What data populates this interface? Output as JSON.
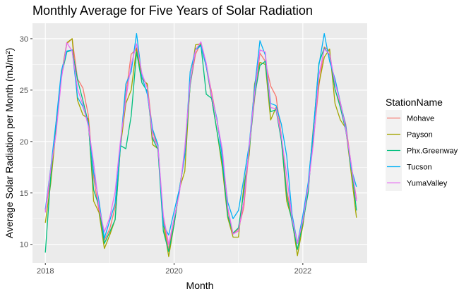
{
  "chart_data": {
    "type": "line",
    "title": "Monthly Average for Five Years of Solar Radiation",
    "xlabel": "Month",
    "ylabel": "Average Solar Radiation per Month (mJ/m²)",
    "xlim": [
      2017.8,
      2023.0
    ],
    "ylim": [
      8.2,
      31.5
    ],
    "x_ticks": [
      2018,
      2020,
      2022
    ],
    "x_tick_labels": [
      "2018",
      "2020",
      "2022"
    ],
    "y_ticks": [
      10,
      15,
      20,
      25,
      30
    ],
    "y_tick_labels": [
      "10",
      "15",
      "20",
      "25",
      "30"
    ],
    "grid": true,
    "legend_title": "StationName",
    "legend_position": "right",
    "x_start": 2018.0,
    "x_step": 0.08333,
    "series": [
      {
        "name": "Mohave",
        "color": "#F8766D",
        "values": [
          13.3,
          16.3,
          21.6,
          26.5,
          29.5,
          30.0,
          26.1,
          25.2,
          22.6,
          16.5,
          13.2,
          10.4,
          11.5,
          13.6,
          19.6,
          24.6,
          28.5,
          29.0,
          26.2,
          25.5,
          21.0,
          19.4,
          12.4,
          9.5,
          12.5,
          15.1,
          18.9,
          25.5,
          28.5,
          29.6,
          27.3,
          24.8,
          22.0,
          18.7,
          13.3,
          11.0,
          11.5,
          13.6,
          19.3,
          24.1,
          28.6,
          27.8,
          25.4,
          24.4,
          20.6,
          15.3,
          12.6,
          10.1,
          11.8,
          15.6,
          20.3,
          25.4,
          29.2,
          28.8,
          25.0,
          23.6,
          21.7,
          17.8,
          14.4
        ]
      },
      {
        "name": "Payson",
        "color": "#A3A500",
        "values": [
          12.1,
          15.9,
          21.2,
          26.5,
          29.6,
          30.0,
          24.0,
          22.6,
          22.2,
          14.2,
          13.1,
          9.6,
          10.9,
          12.4,
          19.5,
          23.7,
          25.0,
          29.1,
          26.1,
          25.6,
          19.7,
          19.3,
          12.1,
          8.8,
          11.9,
          15.4,
          17.1,
          25.7,
          29.4,
          29.5,
          27.3,
          24.2,
          21.0,
          17.4,
          12.6,
          10.7,
          10.7,
          15.7,
          18.7,
          25.6,
          27.7,
          27.5,
          22.1,
          23.3,
          20.3,
          14.2,
          12.4,
          8.9,
          11.8,
          15.6,
          21.6,
          25.6,
          28.2,
          29.0,
          23.7,
          22.1,
          21.3,
          17.0,
          12.6
        ]
      },
      {
        "name": "Phx.Greenway",
        "color": "#00BF7D",
        "values": [
          9.2,
          16.6,
          21.8,
          26.4,
          28.7,
          28.9,
          26.0,
          24.0,
          21.8,
          15.3,
          13.7,
          10.1,
          11.2,
          12.4,
          19.6,
          19.3,
          22.5,
          28.7,
          25.7,
          24.9,
          20.3,
          19.2,
          11.3,
          9.3,
          11.9,
          15.4,
          18.8,
          25.5,
          29.0,
          29.4,
          24.6,
          24.2,
          21.0,
          17.9,
          12.8,
          11.1,
          11.6,
          15.1,
          19.2,
          24.4,
          27.4,
          27.8,
          22.9,
          23.1,
          20.1,
          14.8,
          12.2,
          9.5,
          12.1,
          15.0,
          21.3,
          27.6,
          29.1,
          28.4,
          25.1,
          23.3,
          21.1,
          17.8,
          13.3
        ]
      },
      {
        "name": "Tucson",
        "color": "#00B0F6",
        "values": [
          13.4,
          17.4,
          21.9,
          26.9,
          28.8,
          28.9,
          24.3,
          23.4,
          21.8,
          17.0,
          14.2,
          10.6,
          12.3,
          14.0,
          19.6,
          25.6,
          26.8,
          30.5,
          26.3,
          24.6,
          21.2,
          19.7,
          11.9,
          10.9,
          13.2,
          15.4,
          18.6,
          26.8,
          28.9,
          29.3,
          27.3,
          24.4,
          22.2,
          18.4,
          14.1,
          12.5,
          13.3,
          16.4,
          19.7,
          25.2,
          29.8,
          28.4,
          23.7,
          23.5,
          21.7,
          18.6,
          12.9,
          10.1,
          12.8,
          16.0,
          21.3,
          27.4,
          30.5,
          27.8,
          26.1,
          23.8,
          21.5,
          17.4,
          15.6
        ]
      },
      {
        "name": "YumaValley",
        "color": "#E76BF3",
        "values": [
          13.1,
          17.3,
          20.8,
          26.1,
          29.6,
          28.8,
          25.1,
          23.6,
          21.5,
          17.9,
          13.6,
          11.2,
          12.6,
          15.1,
          20.1,
          24.1,
          27.5,
          29.5,
          26.6,
          25.2,
          20.5,
          19.5,
          12.8,
          10.0,
          12.5,
          15.0,
          19.4,
          25.8,
          28.9,
          29.7,
          27.6,
          24.5,
          22.0,
          19.2,
          13.6,
          11.0,
          11.3,
          14.2,
          19.5,
          24.7,
          28.9,
          28.7,
          23.3,
          23.2,
          20.5,
          16.7,
          12.5,
          10.1,
          12.3,
          15.6,
          20.0,
          26.4,
          29.0,
          28.5,
          25.7,
          23.8,
          21.2,
          17.9,
          14.2
        ]
      }
    ]
  }
}
